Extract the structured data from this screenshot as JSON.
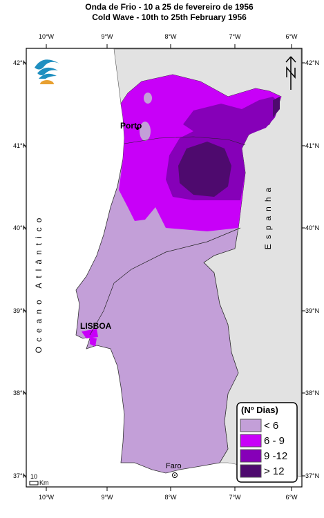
{
  "header": {
    "title_pt": "Onda de Frio - 10 a 25 de fevereiro de 1956",
    "title_en": "Cold Wave - 10th to 25th February 1956"
  },
  "graticule": {
    "longitudes": [
      "10°W",
      "9°W",
      "8°W",
      "7°W",
      "6°W"
    ],
    "latitudes": [
      "42°N",
      "41°N",
      "40°N",
      "39°N",
      "38°N",
      "37°N"
    ]
  },
  "places": {
    "porto": "Porto",
    "lisboa": "LISBOA",
    "faro": "Faro"
  },
  "regions": {
    "ocean": "Oceano Atlântico",
    "spain": "Espanha"
  },
  "legend": {
    "title": "(Nº Dias)",
    "items": [
      {
        "label": "< 6",
        "color": "#c39fd8"
      },
      {
        "label": "6 - 9",
        "color": "#c800f8"
      },
      {
        "label": "9 -12",
        "color": "#8600b8"
      },
      {
        "label": "> 12",
        "color": "#4e0a6e"
      }
    ]
  },
  "scale_bar": {
    "value": "10",
    "unit": "Km"
  }
}
